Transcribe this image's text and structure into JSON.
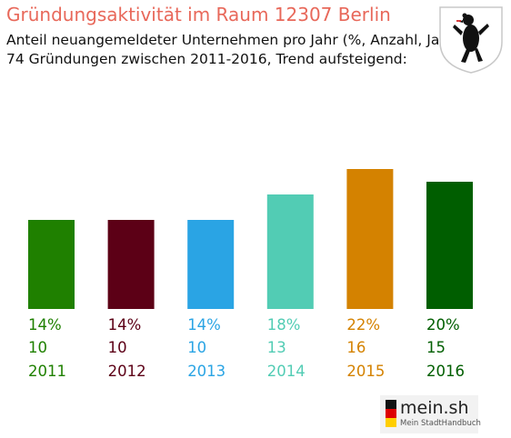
{
  "header": {
    "title": "Gründungsaktivität im Raum 12307 Berlin",
    "subtitle_line1": "Anteil neuangemeldeter Unternehmen pro Jahr (%, Anzahl, Jahr)",
    "subtitle_line2": "74 Gründungen zwischen 2011-2016, Trend aufsteigend:"
  },
  "icons": {
    "coat_of_arms": "berlin-bear-coat-of-arms-icon",
    "logo_flag": "germany-flag-icon"
  },
  "logo": {
    "name": "mein.sh",
    "tagline": "Mein StadtHandbuch"
  },
  "chart_data": {
    "type": "bar",
    "categories": [
      "2011",
      "2012",
      "2013",
      "2014",
      "2015",
      "2016"
    ],
    "values": [
      14,
      14,
      14,
      18,
      22,
      20
    ],
    "counts": [
      10,
      10,
      10,
      13,
      16,
      15
    ],
    "percent_labels": [
      "14%",
      "14%",
      "14%",
      "18%",
      "22%",
      "20%"
    ],
    "colors": [
      "#1f8000",
      "#5c0016",
      "#2aa4e4",
      "#52ccb4",
      "#d48200",
      "#005e00"
    ],
    "ylim": [
      0,
      22
    ],
    "grid": false,
    "legend": "none"
  }
}
